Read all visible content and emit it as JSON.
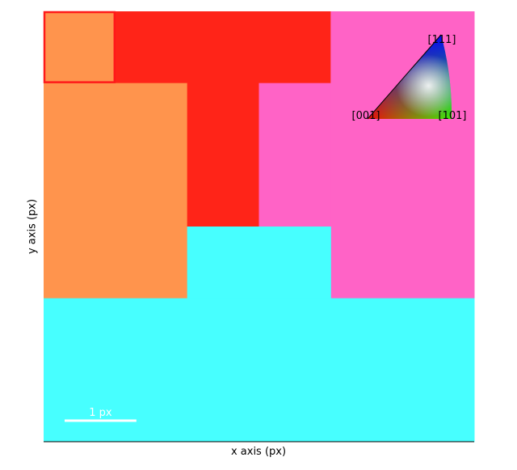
{
  "chart_data": {
    "type": "heatmap",
    "title": "",
    "xlabel": "x axis (px)",
    "ylabel": "y axis (px)",
    "xlim": [
      0,
      6
    ],
    "ylim": [
      6,
      0
    ],
    "grid": false,
    "cells": [
      {
        "x": 0,
        "y": 0,
        "w": 1,
        "h": 1,
        "color": "#ff944d"
      },
      {
        "x": 1,
        "y": 0,
        "w": 3,
        "h": 1,
        "color": "#ff2418"
      },
      {
        "x": 4,
        "y": 0,
        "w": 2,
        "h": 4,
        "color": "#ff63c6"
      },
      {
        "x": 0,
        "y": 1,
        "w": 2,
        "h": 3,
        "color": "#ff944d"
      },
      {
        "x": 2,
        "y": 1,
        "w": 1,
        "h": 2,
        "color": "#ff2418"
      },
      {
        "x": 3,
        "y": 1,
        "w": 1,
        "h": 2,
        "color": "#ff63c6"
      },
      {
        "x": 2,
        "y": 3,
        "w": 2,
        "h": 1,
        "color": "#47ffff"
      },
      {
        "x": 0,
        "y": 4,
        "w": 6,
        "h": 2,
        "color": "#47ffff"
      }
    ],
    "highlight": {
      "x": 0,
      "y": 0,
      "w": 1,
      "h": 1,
      "color": "#ff1a1a"
    },
    "scalebar": {
      "label": "1 px",
      "length": 1,
      "color": "#ffffff"
    },
    "ipf_key": {
      "labels": {
        "top": "[111]",
        "left": "[001]",
        "right": "[101]"
      },
      "placement": "top-right"
    }
  }
}
